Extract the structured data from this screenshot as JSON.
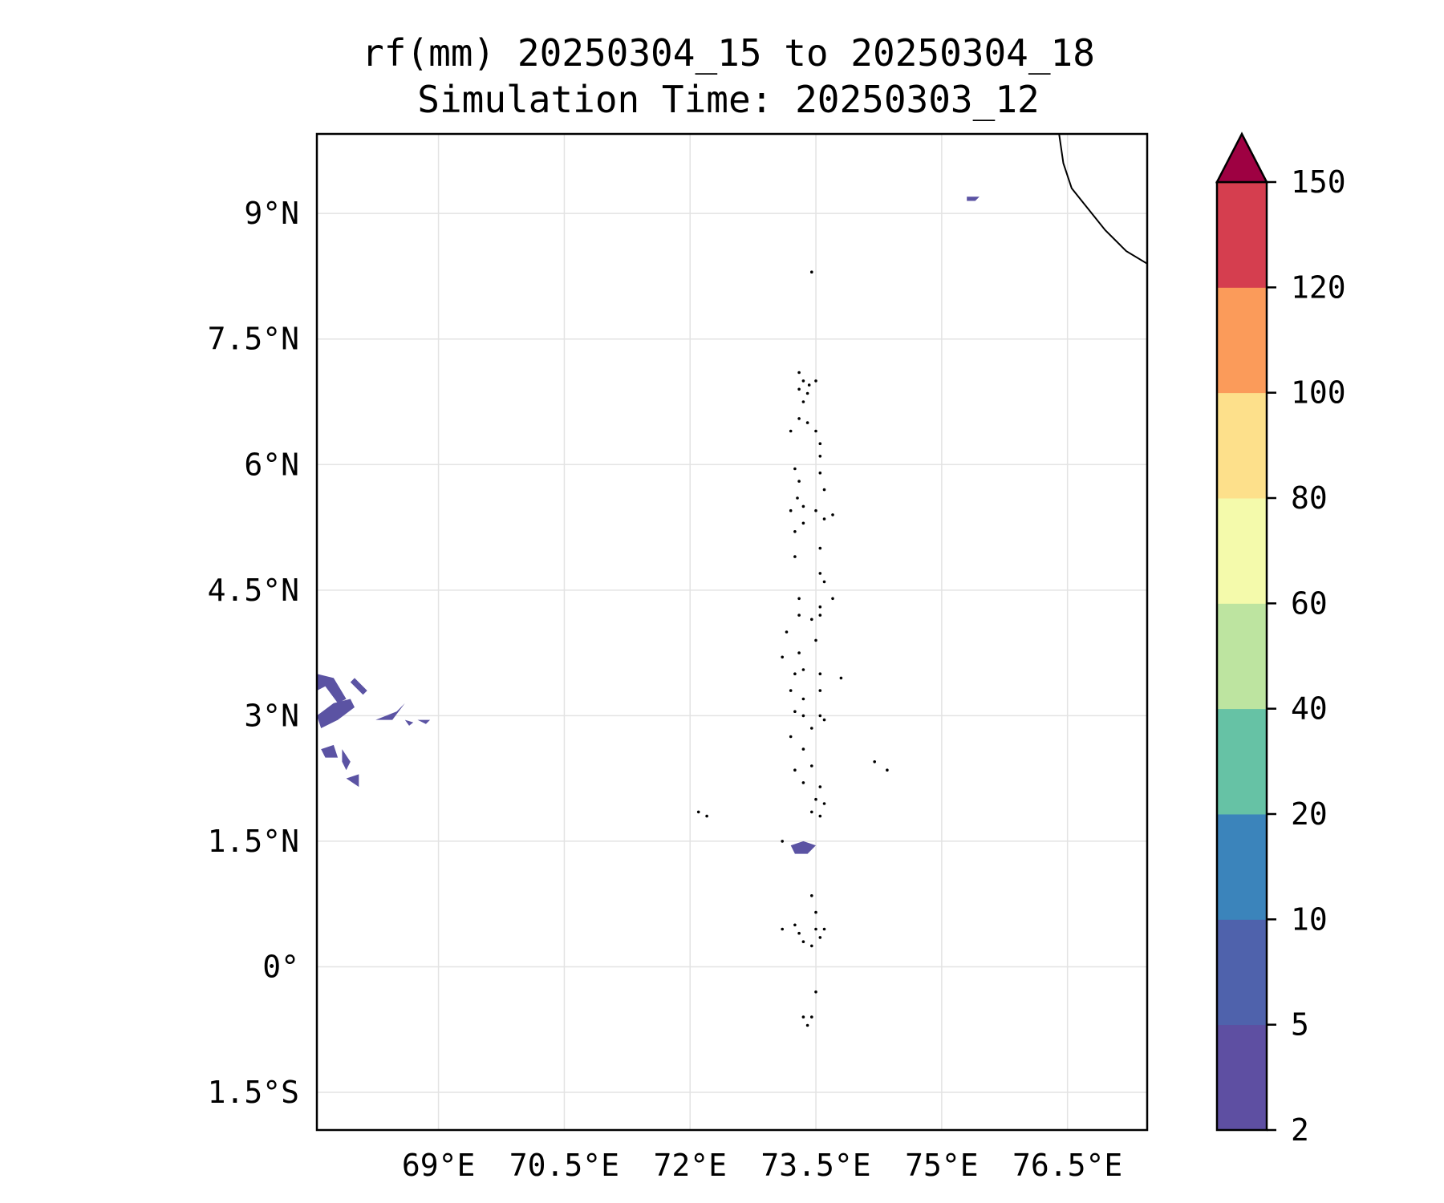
{
  "title": {
    "line1": "rf(mm) 20250304_15 to 20250304_18",
    "line2": "Simulation Time: 20250303_12"
  },
  "map": {
    "lon_range": [
      67.55,
      77.45
    ],
    "lat_range": [
      -1.95,
      9.95
    ],
    "x_ticks": [
      {
        "value": 69.0,
        "label": "69°E"
      },
      {
        "value": 70.5,
        "label": "70.5°E"
      },
      {
        "value": 72.0,
        "label": "72°E"
      },
      {
        "value": 73.5,
        "label": "73.5°E"
      },
      {
        "value": 75.0,
        "label": "75°E"
      },
      {
        "value": 76.5,
        "label": "76.5°E"
      }
    ],
    "y_ticks": [
      {
        "value": 9.0,
        "label": "9°N"
      },
      {
        "value": 7.5,
        "label": "7.5°N"
      },
      {
        "value": 6.0,
        "label": "6°N"
      },
      {
        "value": 4.5,
        "label": "4.5°N"
      },
      {
        "value": 3.0,
        "label": "3°N"
      },
      {
        "value": 1.5,
        "label": "1.5°N"
      },
      {
        "value": 0.0,
        "label": "0°"
      },
      {
        "value": -1.5,
        "label": "1.5°S"
      }
    ],
    "grid": true,
    "coastline_india": [
      [
        76.4,
        9.95
      ],
      [
        76.45,
        9.6
      ],
      [
        76.55,
        9.3
      ],
      [
        76.75,
        9.05
      ],
      [
        76.95,
        8.8
      ],
      [
        77.2,
        8.55
      ],
      [
        77.45,
        8.4
      ],
      [
        77.7,
        8.25
      ],
      [
        77.95,
        8.2
      ],
      [
        78.15,
        8.28
      ],
      [
        78.4,
        8.3
      ],
      [
        78.55,
        8.4
      ],
      [
        78.62,
        8.5
      ]
    ],
    "atolls": [
      [
        73.45,
        8.3
      ],
      [
        73.3,
        7.1
      ],
      [
        73.35,
        7.0
      ],
      [
        73.3,
        6.9
      ],
      [
        73.42,
        6.95
      ],
      [
        73.5,
        7.0
      ],
      [
        73.4,
        6.85
      ],
      [
        73.35,
        6.75
      ],
      [
        73.2,
        6.4
      ],
      [
        73.3,
        6.55
      ],
      [
        73.4,
        6.5
      ],
      [
        73.5,
        6.4
      ],
      [
        73.55,
        6.25
      ],
      [
        73.55,
        6.1
      ],
      [
        73.25,
        5.95
      ],
      [
        73.3,
        5.8
      ],
      [
        73.28,
        5.6
      ],
      [
        73.2,
        5.45
      ],
      [
        73.35,
        5.5
      ],
      [
        73.25,
        5.2
      ],
      [
        73.35,
        5.3
      ],
      [
        73.25,
        4.9
      ],
      [
        73.55,
        5.9
      ],
      [
        73.6,
        5.7
      ],
      [
        73.5,
        5.45
      ],
      [
        73.6,
        5.35
      ],
      [
        73.7,
        5.4
      ],
      [
        73.55,
        5.0
      ],
      [
        73.55,
        4.7
      ],
      [
        73.6,
        4.6
      ],
      [
        73.7,
        4.4
      ],
      [
        73.55,
        4.3
      ],
      [
        73.45,
        4.15
      ],
      [
        73.55,
        4.2
      ],
      [
        73.3,
        4.4
      ],
      [
        73.3,
        4.2
      ],
      [
        73.15,
        4.0
      ],
      [
        73.1,
        3.7
      ],
      [
        73.3,
        3.75
      ],
      [
        73.25,
        3.5
      ],
      [
        73.35,
        3.55
      ],
      [
        73.5,
        3.9
      ],
      [
        73.55,
        3.5
      ],
      [
        73.55,
        3.3
      ],
      [
        73.8,
        3.45
      ],
      [
        73.2,
        3.3
      ],
      [
        73.35,
        3.2
      ],
      [
        73.25,
        3.05
      ],
      [
        73.35,
        3.0
      ],
      [
        73.55,
        3.0
      ],
      [
        73.6,
        2.95
      ],
      [
        73.45,
        2.85
      ],
      [
        73.2,
        2.75
      ],
      [
        73.35,
        2.6
      ],
      [
        73.45,
        2.4
      ],
      [
        73.25,
        2.35
      ],
      [
        73.35,
        2.2
      ],
      [
        73.55,
        2.15
      ],
      [
        73.5,
        2.0
      ],
      [
        73.6,
        1.95
      ],
      [
        73.45,
        1.85
      ],
      [
        73.55,
        1.8
      ],
      [
        72.1,
        1.85
      ],
      [
        72.2,
        1.8
      ],
      [
        74.2,
        2.45
      ],
      [
        74.35,
        2.35
      ],
      [
        73.1,
        1.5
      ],
      [
        73.45,
        0.85
      ],
      [
        73.5,
        0.65
      ],
      [
        73.5,
        0.45
      ],
      [
        73.3,
        0.4
      ],
      [
        73.35,
        0.3
      ],
      [
        73.45,
        0.25
      ],
      [
        73.55,
        0.35
      ],
      [
        73.6,
        0.45
      ],
      [
        73.5,
        -0.3
      ],
      [
        73.1,
        0.45
      ],
      [
        73.25,
        0.5
      ],
      [
        73.35,
        -0.6
      ],
      [
        73.4,
        -0.7
      ],
      [
        73.45,
        -0.6
      ]
    ],
    "rain_patches": [
      [
        [
          67.55,
          3.5
        ],
        [
          67.75,
          3.45
        ],
        [
          67.9,
          3.2
        ],
        [
          67.8,
          3.15
        ],
        [
          67.65,
          3.35
        ],
        [
          67.55,
          3.3
        ]
      ],
      [
        [
          67.55,
          3.0
        ],
        [
          67.75,
          3.15
        ],
        [
          67.95,
          3.2
        ],
        [
          68.0,
          3.1
        ],
        [
          67.8,
          2.95
        ],
        [
          67.6,
          2.85
        ]
      ],
      [
        [
          68.0,
          3.45
        ],
        [
          68.15,
          3.3
        ],
        [
          68.1,
          3.25
        ],
        [
          67.95,
          3.4
        ]
      ],
      [
        [
          68.25,
          2.95
        ],
        [
          68.5,
          3.05
        ],
        [
          68.6,
          3.15
        ],
        [
          68.45,
          2.95
        ]
      ],
      [
        [
          68.6,
          2.95
        ],
        [
          68.7,
          2.92
        ],
        [
          68.65,
          2.88
        ]
      ],
      [
        [
          68.75,
          2.95
        ],
        [
          68.9,
          2.95
        ],
        [
          68.85,
          2.9
        ]
      ],
      [
        [
          67.6,
          2.6
        ],
        [
          67.75,
          2.65
        ],
        [
          67.8,
          2.5
        ],
        [
          67.65,
          2.5
        ]
      ],
      [
        [
          67.85,
          2.6
        ],
        [
          67.95,
          2.45
        ],
        [
          67.9,
          2.35
        ],
        [
          67.85,
          2.45
        ]
      ],
      [
        [
          67.9,
          2.25
        ],
        [
          68.05,
          2.15
        ],
        [
          68.05,
          2.3
        ]
      ],
      [
        [
          73.2,
          1.45
        ],
        [
          73.35,
          1.5
        ],
        [
          73.5,
          1.45
        ],
        [
          73.4,
          1.35
        ],
        [
          73.25,
          1.35
        ]
      ],
      [
        [
          75.3,
          9.2
        ],
        [
          75.45,
          9.2
        ],
        [
          75.4,
          9.15
        ],
        [
          75.3,
          9.15
        ]
      ]
    ]
  },
  "colorbar": {
    "levels": [
      2,
      5,
      10,
      20,
      40,
      60,
      80,
      100,
      120,
      150
    ],
    "tick_labels": [
      "2",
      "5",
      "10",
      "20",
      "40",
      "60",
      "80",
      "100",
      "120",
      "150"
    ],
    "colors": [
      "#5e4fa2",
      "#4f62ac",
      "#3b84bb",
      "#66c2a5",
      "#bde4a0",
      "#f4faab",
      "#fde08b",
      "#fb9b5a",
      "#d53e4f"
    ],
    "extend_color": "#9e0142"
  }
}
